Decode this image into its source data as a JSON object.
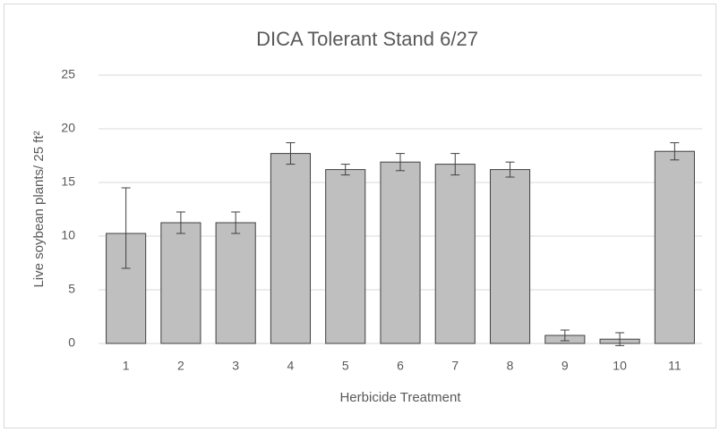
{
  "chart_data": {
    "type": "bar",
    "title": "DICA Tolerant Stand 6/27",
    "x_label": "Herbicide Treatment",
    "y_label": "Live soybean plants/ 25 ft²",
    "categories": [
      "1",
      "2",
      "3",
      "4",
      "5",
      "6",
      "7",
      "8",
      "9",
      "10",
      "11"
    ],
    "values": [
      10.25,
      11.25,
      11.25,
      17.7,
      16.2,
      16.9,
      16.7,
      16.2,
      0.75,
      0.4,
      17.9
    ],
    "error_plus": [
      4.25,
      1,
      1,
      1,
      0.5,
      0.8,
      1,
      0.7,
      0.5,
      0.6,
      0.8
    ],
    "error_minus": [
      3.25,
      1,
      1,
      1,
      0.5,
      0.8,
      1,
      0.7,
      0.5,
      0.6,
      0.8
    ],
    "color": "#bfbfbf",
    "edge_color": "#404040",
    "ylim": [
      0,
      25
    ],
    "yticks": [
      0,
      5,
      10,
      15,
      20,
      25
    ],
    "grid": true
  }
}
